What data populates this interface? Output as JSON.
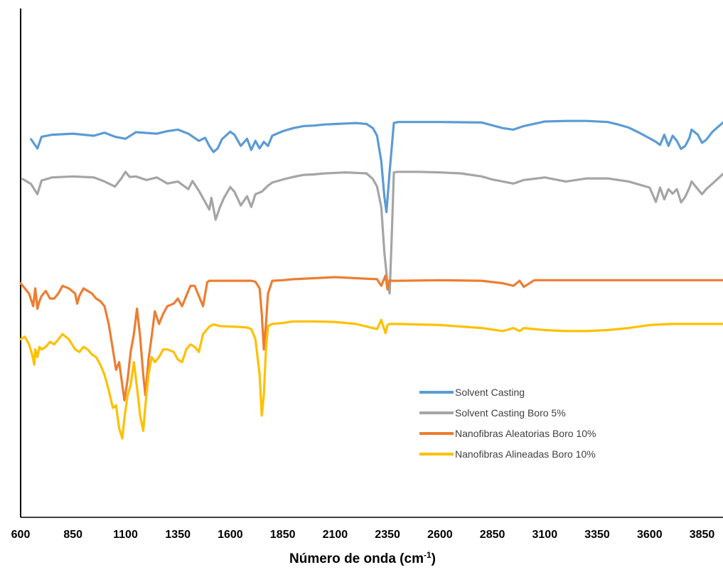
{
  "chart_data": {
    "type": "line",
    "title": "",
    "xlabel": "Número de onda (cm",
    "xlabel_sup": "-1",
    "xlabel_suffix": ")",
    "ylabel": "",
    "xlim": [
      600,
      3950
    ],
    "ylim": [
      0,
      100
    ],
    "x_ticks": [
      "600",
      "850",
      "1100",
      "1350",
      "1600",
      "1850",
      "2100",
      "2350",
      "2600",
      "2850",
      "3100",
      "3350",
      "3600",
      "3850"
    ],
    "grid": false,
    "legend_position": "lower-right",
    "series": [
      {
        "name": "Solvent Casting",
        "color": "#5B9BD5",
        "x": [
          650,
          680,
          700,
          750,
          850,
          950,
          1000,
          1050,
          1100,
          1150,
          1250,
          1300,
          1350,
          1400,
          1450,
          1480,
          1500,
          1520,
          1540,
          1560,
          1600,
          1620,
          1650,
          1680,
          1700,
          1720,
          1740,
          1760,
          1780,
          1800,
          1850,
          1900,
          1950,
          2000,
          2050,
          2100,
          2150,
          2200,
          2250,
          2280,
          2300,
          2320,
          2335,
          2345,
          2360,
          2380,
          2400,
          2600,
          2800,
          2900,
          2950,
          3000,
          3100,
          3200,
          3300,
          3400,
          3450,
          3500,
          3550,
          3600,
          3630,
          3650,
          3670,
          3690,
          3710,
          3730,
          3750,
          3770,
          3790,
          3800,
          3830,
          3850,
          3870,
          3900,
          3950
        ],
        "y": [
          74.3,
          72.5,
          74.8,
          75.2,
          75.4,
          75.0,
          75.6,
          74.8,
          74.4,
          75.7,
          75.4,
          75.9,
          76.2,
          75.4,
          74.0,
          74.6,
          73.0,
          71.8,
          72.5,
          74.3,
          75.8,
          75.2,
          73.0,
          74.4,
          72.2,
          74.0,
          72.5,
          73.8,
          73.0,
          75.0,
          75.9,
          76.5,
          76.9,
          77.0,
          77.2,
          77.3,
          77.4,
          77.5,
          77.3,
          76.5,
          75.0,
          70.0,
          63.0,
          60.0,
          68.0,
          77.5,
          77.7,
          77.7,
          77.6,
          76.5,
          76.2,
          76.9,
          77.8,
          77.9,
          77.9,
          77.7,
          77.2,
          76.6,
          75.6,
          74.5,
          73.8,
          73.2,
          75.2,
          73.0,
          75.0,
          74.0,
          72.4,
          73.0,
          74.6,
          76.2,
          75.2,
          73.6,
          74.2,
          75.8,
          77.6
        ]
      },
      {
        "name": "Solvent Casting Boro 5%",
        "color": "#A5A5A5",
        "x": [
          610,
          650,
          680,
          700,
          750,
          850,
          950,
          1000,
          1050,
          1080,
          1100,
          1120,
          1150,
          1200,
          1250,
          1300,
          1350,
          1400,
          1420,
          1450,
          1480,
          1500,
          1510,
          1530,
          1550,
          1570,
          1600,
          1620,
          1650,
          1680,
          1700,
          1720,
          1750,
          1780,
          1800,
          1850,
          1900,
          1950,
          2000,
          2050,
          2100,
          2150,
          2200,
          2250,
          2280,
          2300,
          2320,
          2335,
          2350,
          2360,
          2370,
          2380,
          2400,
          2500,
          2600,
          2700,
          2800,
          2850,
          2900,
          2950,
          3000,
          3100,
          3200,
          3300,
          3400,
          3500,
          3550,
          3600,
          3630,
          3650,
          3670,
          3690,
          3710,
          3730,
          3750,
          3770,
          3790,
          3800,
          3830,
          3850,
          3870,
          3900,
          3950
        ],
        "y": [
          66.5,
          65.5,
          63.5,
          66.2,
          66.8,
          67.0,
          66.8,
          66.0,
          65.0,
          66.6,
          67.9,
          66.9,
          67.0,
          66.3,
          66.8,
          65.6,
          66.0,
          64.5,
          66.1,
          64.2,
          62.0,
          60.5,
          62.8,
          58.5,
          60.9,
          62.8,
          64.9,
          64.0,
          61.3,
          63.1,
          61.0,
          63.5,
          64.0,
          65.2,
          65.8,
          66.4,
          66.9,
          67.3,
          67.4,
          67.6,
          67.7,
          67.8,
          67.7,
          67.6,
          66.5,
          65.0,
          61.0,
          52.0,
          46.0,
          44.0,
          55.0,
          67.8,
          67.9,
          67.9,
          67.8,
          67.6,
          67.0,
          66.4,
          66.0,
          65.6,
          66.3,
          66.8,
          66.0,
          66.6,
          66.6,
          66.0,
          65.4,
          64.8,
          62.0,
          64.8,
          62.5,
          64.5,
          63.6,
          64.5,
          61.9,
          63.0,
          64.8,
          66.0,
          64.5,
          63.5,
          64.5,
          65.6,
          67.5
        ]
      },
      {
        "name": "Nanofibras Aleatorias Boro 10%",
        "color": "#ED7D31",
        "x": [
          600,
          640,
          660,
          670,
          680,
          690,
          700,
          720,
          740,
          760,
          780,
          800,
          830,
          860,
          870,
          880,
          900,
          920,
          940,
          960,
          980,
          1000,
          1020,
          1040,
          1055,
          1070,
          1085,
          1095,
          1110,
          1125,
          1140,
          1155,
          1170,
          1185,
          1195,
          1210,
          1225,
          1240,
          1260,
          1280,
          1300,
          1330,
          1350,
          1370,
          1390,
          1410,
          1430,
          1450,
          1470,
          1490,
          1500,
          1520,
          1550,
          1600,
          1650,
          1680,
          1700,
          1720,
          1740,
          1750,
          1760,
          1770,
          1780,
          1800,
          1850,
          1900,
          2000,
          2100,
          2200,
          2300,
          2320,
          2340,
          2350,
          2360,
          2370,
          2400,
          2600,
          2800,
          2900,
          2950,
          2980,
          3000,
          3050,
          3100,
          3300,
          3500,
          3700,
          3950
        ],
        "y": [
          46.0,
          44.0,
          41.5,
          45.0,
          41.0,
          42.5,
          43.5,
          44.5,
          43.0,
          43.0,
          44.0,
          45.5,
          45.0,
          44.0,
          42.0,
          43.5,
          45.0,
          44.5,
          44.0,
          43.0,
          42.5,
          41.5,
          38.0,
          33.0,
          29.0,
          30.5,
          26.0,
          23.0,
          27.0,
          32.5,
          36.0,
          41.0,
          35.5,
          28.0,
          24.0,
          31.0,
          35.5,
          40.5,
          38.0,
          40.0,
          41.5,
          42.0,
          43.0,
          41.5,
          43.5,
          45.5,
          45.5,
          43.5,
          41.5,
          46.2,
          46.5,
          46.5,
          46.5,
          46.5,
          46.5,
          46.5,
          46.5,
          46.3,
          45.0,
          40.0,
          33.0,
          38.0,
          44.0,
          46.5,
          46.6,
          46.8,
          47.0,
          47.2,
          47.0,
          46.8,
          45.5,
          47.5,
          44.8,
          46.6,
          46.5,
          46.5,
          46.6,
          46.5,
          46.0,
          45.5,
          46.5,
          45.3,
          46.6,
          46.6,
          46.6,
          46.6,
          46.6,
          46.6
        ]
      },
      {
        "name": "Nanofibras Alineadas Boro 10%",
        "color": "#FFC000",
        "x": [
          600,
          620,
          640,
          655,
          665,
          670,
          680,
          690,
          700,
          720,
          740,
          760,
          780,
          800,
          830,
          860,
          880,
          900,
          920,
          940,
          960,
          980,
          1000,
          1020,
          1040,
          1055,
          1070,
          1085,
          1095,
          1110,
          1125,
          1140,
          1155,
          1170,
          1185,
          1195,
          1210,
          1225,
          1240,
          1260,
          1280,
          1300,
          1330,
          1350,
          1370,
          1390,
          1410,
          1430,
          1450,
          1470,
          1490,
          1500,
          1520,
          1550,
          1600,
          1650,
          1680,
          1700,
          1720,
          1740,
          1750,
          1760,
          1770,
          1780,
          1800,
          1850,
          1900,
          2000,
          2100,
          2200,
          2300,
          2320,
          2340,
          2350,
          2360,
          2370,
          2400,
          2600,
          2800,
          2900,
          2950,
          2980,
          3000,
          3050,
          3100,
          3200,
          3300,
          3400,
          3500,
          3600,
          3700,
          3950
        ],
        "y": [
          35.0,
          35.5,
          34.0,
          32.0,
          30.0,
          33.0,
          31.5,
          33.5,
          33.0,
          33.5,
          34.5,
          34.0,
          35.0,
          36.0,
          35.0,
          33.0,
          32.5,
          33.5,
          33.0,
          32.0,
          31.5,
          30.0,
          28.0,
          25.0,
          21.5,
          22.0,
          17.5,
          15.5,
          19.5,
          24.0,
          26.0,
          30.5,
          25.5,
          20.0,
          17.0,
          22.0,
          28.0,
          31.5,
          30.5,
          31.5,
          33.0,
          33.0,
          32.5,
          31.0,
          30.5,
          33.0,
          34.0,
          33.5,
          32.5,
          36.0,
          37.0,
          37.5,
          37.9,
          37.6,
          37.5,
          37.4,
          37.3,
          37.0,
          35.0,
          28.0,
          20.0,
          24.0,
          33.0,
          37.6,
          38.0,
          38.2,
          38.5,
          38.5,
          38.4,
          38.0,
          37.0,
          38.8,
          36.2,
          37.8,
          38.0,
          38.0,
          38.0,
          37.8,
          37.2,
          36.6,
          37.2,
          36.6,
          37.2,
          37.0,
          36.8,
          36.6,
          36.6,
          36.8,
          37.2,
          37.8,
          38.0,
          38.0
        ]
      }
    ]
  }
}
